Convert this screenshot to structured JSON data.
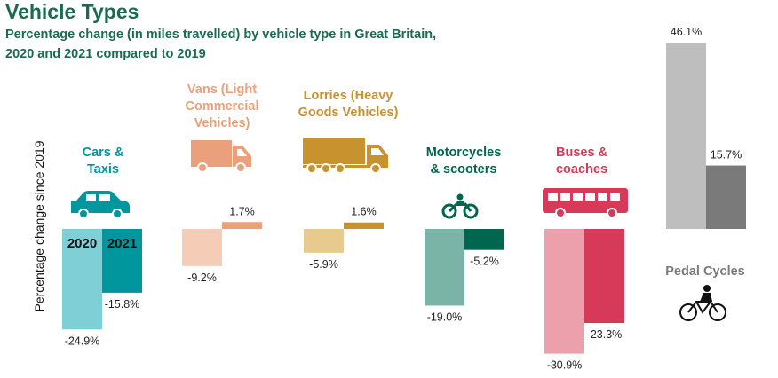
{
  "title": "Vehicle Types",
  "subtitle_line1": "Percentage change (in miles travelled) by vehicle type in Great Britain,",
  "subtitle_line2": "2020 and 2021 compared to 2019",
  "chart_data": {
    "type": "bar",
    "ylabel": "Percentage change since 2019",
    "year_labels": [
      "2020",
      "2021"
    ],
    "categories": [
      {
        "label_lines": [
          "Cars &",
          "Taxis"
        ],
        "icon": "car-icon",
        "color_2020": "#7ecfd6",
        "color_2021": "#00969e",
        "label_color": "#00969e",
        "values": [
          -24.9,
          -15.8
        ],
        "value_labels": [
          "-24.9%",
          "-15.8%"
        ]
      },
      {
        "label_lines": [
          "Vans (Light",
          "Commercial",
          "Vehicles)"
        ],
        "icon": "van-icon",
        "color_2020": "#f5cdb7",
        "color_2021": "#eaa07b",
        "label_color": "#eaa07b",
        "values": [
          -9.2,
          1.7
        ],
        "value_labels": [
          "-9.2%",
          "1.7%"
        ]
      },
      {
        "label_lines": [
          "Lorries (Heavy",
          "Goods Vehicles)"
        ],
        "icon": "lorry-icon",
        "color_2020": "#e8c98e",
        "color_2021": "#c8922e",
        "label_color": "#c8922e",
        "values": [
          -5.9,
          1.6
        ],
        "value_labels": [
          "-5.9%",
          "1.6%"
        ]
      },
      {
        "label_lines": [
          "Motorcycles",
          "& scooters"
        ],
        "icon": "motorcycle-icon",
        "color_2020": "#7ab4a7",
        "color_2021": "#00664d",
        "label_color": "#00664d",
        "values": [
          -19.0,
          -5.2
        ],
        "value_labels": [
          "-19.0%",
          "-5.2%"
        ]
      },
      {
        "label_lines": [
          "Buses &",
          "coaches"
        ],
        "icon": "bus-icon",
        "color_2020": "#eba0ab",
        "color_2021": "#d63a58",
        "label_color": "#d63a58",
        "values": [
          -30.9,
          -23.3
        ],
        "value_labels": [
          "-30.9%",
          "-23.3%"
        ]
      },
      {
        "label_lines": [
          "Pedal Cycles"
        ],
        "icon": "bicycle-icon",
        "color_2020": "#bebebe",
        "color_2021": "#7a7a7a",
        "label_color": "#7a7a7a",
        "values": [
          46.1,
          15.7
        ],
        "value_labels": [
          "46.1%",
          "15.7%"
        ]
      }
    ]
  }
}
